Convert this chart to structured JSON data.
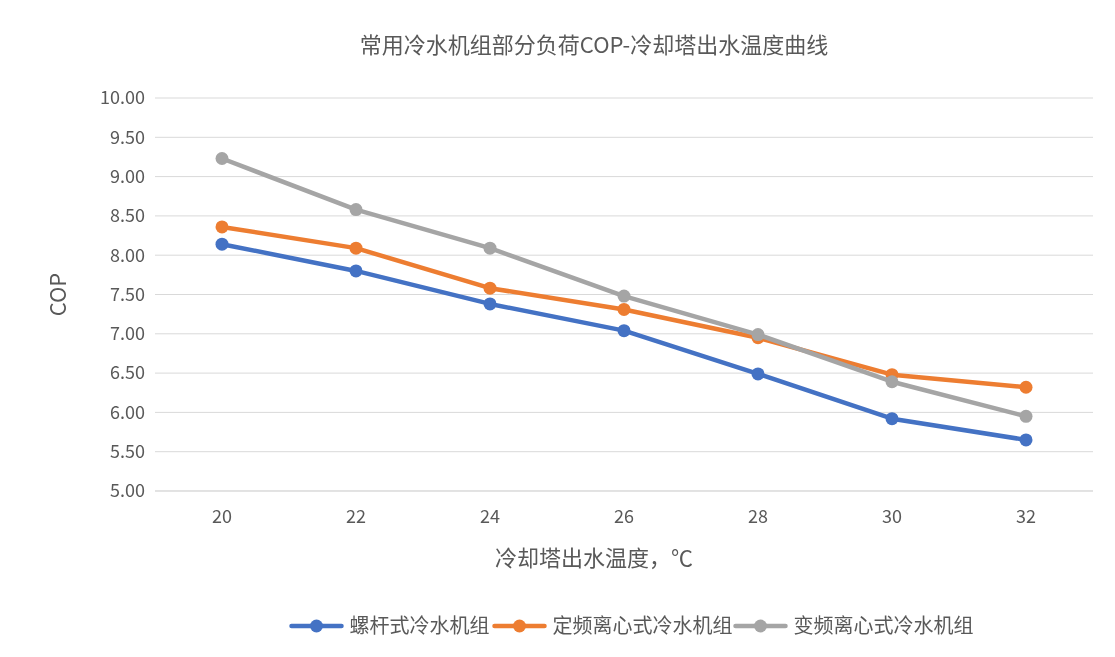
{
  "chart_data": {
    "type": "line",
    "title": "常用冷水机组部分负荷COP-冷却塔出水温度曲线",
    "xlabel": "冷却塔出水温度，℃",
    "ylabel": "COP",
    "categories": [
      "20",
      "22",
      "24",
      "26",
      "28",
      "30",
      "32"
    ],
    "series": [
      {
        "name": "螺杆式冷水机组",
        "color": "#4472c4",
        "values": [
          8.14,
          7.8,
          7.38,
          7.04,
          6.49,
          5.92,
          5.65
        ]
      },
      {
        "name": "定频离心式冷水机组",
        "color": "#ed7d31",
        "values": [
          8.36,
          8.09,
          7.58,
          7.31,
          6.95,
          6.48,
          6.32
        ]
      },
      {
        "name": "变频离心式冷水机组",
        "color": "#a5a5a5",
        "values": [
          9.23,
          8.58,
          8.09,
          7.48,
          6.99,
          6.39,
          5.95
        ]
      }
    ],
    "ylim": [
      5,
      10
    ],
    "yticks": [
      {
        "value": 5,
        "label": "5.00"
      },
      {
        "value": 5.5,
        "label": "5.50"
      },
      {
        "value": 6,
        "label": "6.00"
      },
      {
        "value": 6.5,
        "label": "6.50"
      },
      {
        "value": 7,
        "label": "7.00"
      },
      {
        "value": 7.5,
        "label": "7.50"
      },
      {
        "value": 8,
        "label": "8.00"
      },
      {
        "value": 8.5,
        "label": "8.50"
      },
      {
        "value": 9,
        "label": "9.00"
      },
      {
        "value": 9.5,
        "label": "9.50"
      },
      {
        "value": 10,
        "label": "10.00"
      }
    ],
    "grid": "y",
    "legend": "bottom",
    "marker": "circle",
    "line_style": "solid"
  }
}
